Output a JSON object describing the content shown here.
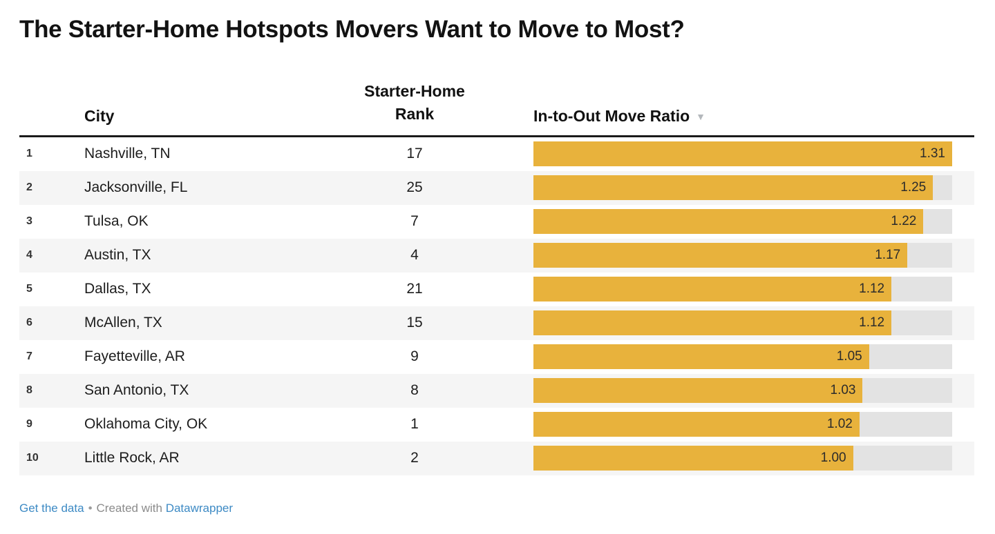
{
  "title": "The Starter-Home Hotspots Movers Want to Move to Most?",
  "table": {
    "columns": {
      "index": "",
      "city": "City",
      "rank": "Starter-Home\nRank",
      "ratio": "In-to-Out Move Ratio"
    },
    "sort_icon": "▼",
    "sort_icon_name": "sort-descending-icon",
    "rows": [
      {
        "index": "1",
        "city": "Nashville, TN",
        "rank": "17",
        "ratio": 1.31,
        "ratio_label": "1.31"
      },
      {
        "index": "2",
        "city": "Jacksonville, FL",
        "rank": "25",
        "ratio": 1.25,
        "ratio_label": "1.25"
      },
      {
        "index": "3",
        "city": "Tulsa, OK",
        "rank": "7",
        "ratio": 1.22,
        "ratio_label": "1.22"
      },
      {
        "index": "4",
        "city": "Austin, TX",
        "rank": "4",
        "ratio": 1.17,
        "ratio_label": "1.17"
      },
      {
        "index": "5",
        "city": "Dallas, TX",
        "rank": "21",
        "ratio": 1.12,
        "ratio_label": "1.12"
      },
      {
        "index": "6",
        "city": "McAllen, TX",
        "rank": "15",
        "ratio": 1.12,
        "ratio_label": "1.12"
      },
      {
        "index": "7",
        "city": "Fayetteville, AR",
        "rank": "9",
        "ratio": 1.05,
        "ratio_label": "1.05"
      },
      {
        "index": "8",
        "city": "San Antonio, TX",
        "rank": "8",
        "ratio": 1.03,
        "ratio_label": "1.03"
      },
      {
        "index": "9",
        "city": "Oklahoma City, OK",
        "rank": "1",
        "ratio": 1.02,
        "ratio_label": "1.02"
      },
      {
        "index": "10",
        "city": "Little Rock, AR",
        "rank": "2",
        "ratio": 1.0,
        "ratio_label": "1.00"
      }
    ]
  },
  "chart_data": {
    "type": "bar",
    "title": "The Starter-Home Hotspots Movers Want to Move to Most?",
    "categories": [
      "Nashville, TN",
      "Jacksonville, FL",
      "Tulsa, OK",
      "Austin, TX",
      "Dallas, TX",
      "McAllen, TX",
      "Fayetteville, AR",
      "San Antonio, TX",
      "Oklahoma City, OK",
      "Little Rock, AR"
    ],
    "series": [
      {
        "name": "Starter-Home Rank",
        "values": [
          17,
          25,
          7,
          4,
          21,
          15,
          9,
          8,
          1,
          2
        ]
      },
      {
        "name": "In-to-Out Move Ratio",
        "values": [
          1.31,
          1.25,
          1.22,
          1.17,
          1.12,
          1.12,
          1.05,
          1.03,
          1.02,
          1.0
        ]
      }
    ],
    "xlabel": "",
    "ylabel": "In-to-Out Move Ratio",
    "xlim": [
      0,
      1.31
    ],
    "orientation": "horizontal",
    "grid": false,
    "legend_position": "none",
    "sort": "In-to-Out Move Ratio, descending",
    "data_labels": true
  },
  "footer": {
    "get_data_label": "Get the data",
    "separator": "•",
    "credit_text": "Created with",
    "credit_link_label": "Datawrapper"
  },
  "colors": {
    "bar": "#e8b23c",
    "bar_track": "#e3e3e3",
    "stripe": "#f5f5f5",
    "rule": "#1a1a1a",
    "link": "#3d8ac4",
    "muted": "#8b8b8b",
    "sort_icon": "#b4b8bc"
  }
}
